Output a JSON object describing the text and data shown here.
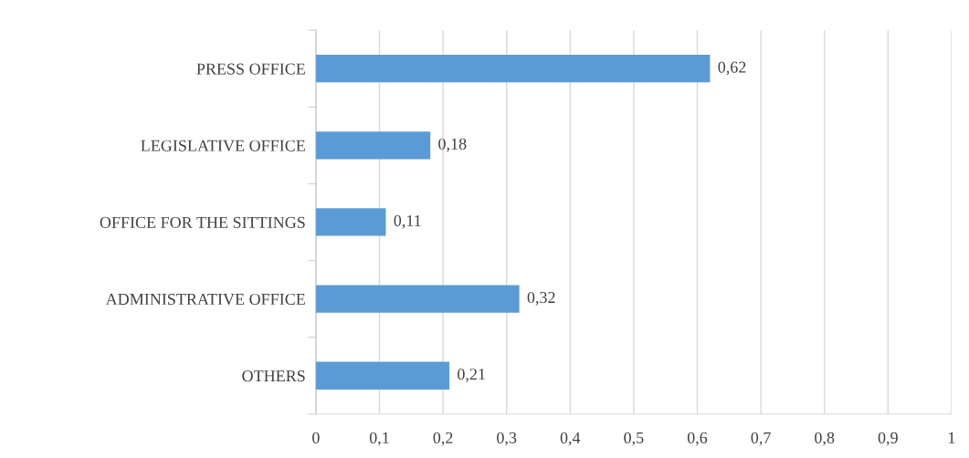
{
  "chart_data": {
    "type": "bar",
    "orientation": "horizontal",
    "categories": [
      "PRESS OFFICE",
      "LEGISLATIVE OFFICE",
      "OFFICE FOR THE SITTINGS",
      "ADMINISTRATIVE OFFICE",
      "OTHERS"
    ],
    "values": [
      0.62,
      0.18,
      0.11,
      0.32,
      0.21
    ],
    "color": "#5b9bd5",
    "value_labels": [
      "0,62",
      "0,18",
      "0,11",
      "0,32",
      "0,21"
    ],
    "xlim": [
      0,
      1
    ],
    "xticks": [
      0,
      {
        "value": 0.1,
        "label": "0,1"
      },
      {
        "value": 0.2,
        "label": "0,2"
      },
      {
        "value": 0.3,
        "label": "0,3"
      },
      {
        "value": 0.4,
        "label": "0,4"
      },
      {
        "value": 0.5,
        "label": "0,5"
      },
      {
        "value": 0.6,
        "label": "0,6"
      },
      {
        "value": 0.7,
        "label": "0,7"
      },
      {
        "value": 0.8,
        "label": "0,8"
      },
      {
        "value": 0.9,
        "label": "0,9"
      },
      1
    ],
    "grid": "x",
    "legend": false
  }
}
